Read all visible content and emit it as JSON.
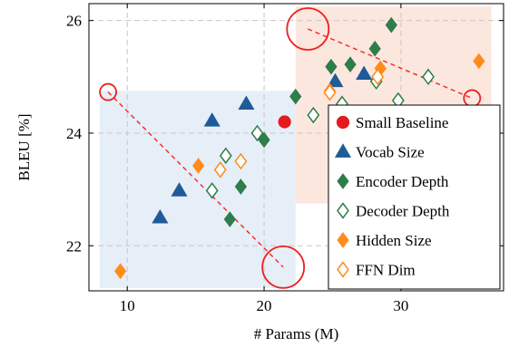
{
  "chart_data": {
    "type": "scatter",
    "xlabel": "# Params (M)",
    "ylabel": "BLEU [%]",
    "xlim": [
      7.2,
      37.5
    ],
    "ylim": [
      21.2,
      26.3
    ],
    "x_ticks": [
      10,
      20,
      30
    ],
    "y_ticks": [
      22,
      24,
      26
    ],
    "x_tick_labels": [
      "10",
      "20",
      "30"
    ],
    "y_tick_labels": [
      "22",
      "24",
      "26"
    ],
    "grid": "dashed, major ticks",
    "legend_position": "bottom-right",
    "series": [
      {
        "name": "Small Baseline",
        "marker": "circle",
        "filled": true,
        "color": "#e41a1c",
        "points": [
          [
            21.5,
            24.2
          ]
        ]
      },
      {
        "name": "Vocab Size",
        "marker": "triangle",
        "filled": true,
        "color": "#1f5b99",
        "points": [
          [
            12.4,
            22.5
          ],
          [
            13.8,
            22.98
          ],
          [
            16.2,
            24.22
          ],
          [
            18.7,
            24.52
          ],
          [
            25.2,
            24.92
          ],
          [
            27.3,
            25.05
          ]
        ]
      },
      {
        "name": "Encoder Depth",
        "marker": "diamond",
        "filled": true,
        "color": "#2e7d4a",
        "points": [
          [
            17.5,
            22.47
          ],
          [
            18.3,
            23.05
          ],
          [
            20.0,
            23.88
          ],
          [
            22.3,
            24.65
          ],
          [
            24.9,
            25.18
          ],
          [
            26.3,
            25.22
          ],
          [
            28.1,
            25.5
          ],
          [
            29.3,
            25.92
          ]
        ]
      },
      {
        "name": "Decoder Depth",
        "marker": "diamond",
        "filled": false,
        "color": "#2e7d4a",
        "points": [
          [
            16.2,
            22.98
          ],
          [
            17.2,
            23.6
          ],
          [
            19.5,
            24.0
          ],
          [
            23.6,
            24.32
          ],
          [
            25.7,
            24.52
          ],
          [
            28.2,
            24.92
          ],
          [
            29.8,
            24.58
          ],
          [
            32.0,
            25.0
          ]
        ]
      },
      {
        "name": "Hidden Size",
        "marker": "diamond",
        "filled": true,
        "color": "#ff8c1a",
        "points": [
          [
            9.5,
            21.55
          ],
          [
            15.2,
            23.42
          ],
          [
            24.8,
            24.75
          ],
          [
            28.5,
            25.15
          ],
          [
            35.7,
            25.28
          ]
        ]
      },
      {
        "name": "FFN Dim",
        "marker": "diamond",
        "filled": false,
        "color": "#ff8c1a",
        "points": [
          [
            16.8,
            23.35
          ],
          [
            18.3,
            23.5
          ],
          [
            24.8,
            24.72
          ],
          [
            28.3,
            25.0
          ]
        ]
      }
    ],
    "regions": [
      {
        "fill": "#e6eef7",
        "x": [
          8.0,
          22.3
        ],
        "y": [
          21.25,
          24.75
        ]
      },
      {
        "fill": "#fbe7dd",
        "x": [
          22.3,
          36.6
        ],
        "y": [
          22.75,
          26.25
        ]
      }
    ],
    "trend_lines": [
      {
        "color": "#ee3333",
        "from": [
          8.6,
          24.73
        ],
        "to": [
          21.4,
          21.62
        ]
      },
      {
        "color": "#ee3333",
        "from": [
          23.2,
          25.85
        ],
        "to": [
          35.2,
          24.62
        ]
      }
    ],
    "highlight_circles": [
      {
        "color": "#ee2222",
        "center": [
          8.6,
          24.73
        ],
        "size": "small"
      },
      {
        "color": "#ee2222",
        "center": [
          21.4,
          21.62
        ],
        "size": "large"
      },
      {
        "color": "#ee2222",
        "center": [
          23.2,
          25.85
        ],
        "size": "large"
      },
      {
        "color": "#ee2222",
        "center": [
          35.2,
          24.62
        ],
        "size": "small"
      }
    ]
  }
}
